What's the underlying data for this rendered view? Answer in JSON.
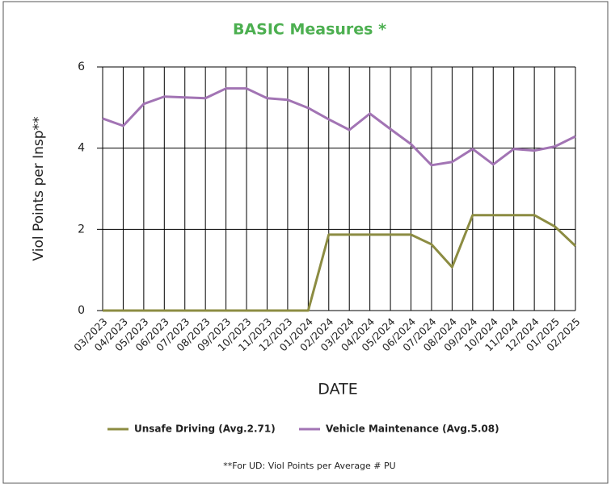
{
  "chart_data": {
    "type": "line",
    "title": "BASIC Measures *",
    "x_label": "DATE",
    "y_label": "Viol Points per Insp**",
    "categories": [
      "03/2023",
      "04/2023",
      "05/2023",
      "06/2023",
      "07/2023",
      "08/2023",
      "09/2023",
      "10/2023",
      "11/2023",
      "12/2023",
      "01/2024",
      "02/2024",
      "03/2024",
      "04/2024",
      "05/2024",
      "06/2024",
      "07/2024",
      "08/2024",
      "09/2024",
      "10/2024",
      "11/2024",
      "12/2024",
      "01/2025",
      "02/2025"
    ],
    "series": [
      {
        "name": "Unsafe Driving (Avg.2.71)",
        "color": "#8c8c42",
        "values": [
          0,
          0,
          0,
          0,
          0,
          0,
          0,
          0,
          0,
          0,
          0,
          1.87,
          1.87,
          1.87,
          1.87,
          1.87,
          1.63,
          1.07,
          2.35,
          2.35,
          2.35,
          2.35,
          2.07,
          1.59
        ]
      },
      {
        "name": "Vehicle Maintenance (Avg.5.08)",
        "color": "#a274b4",
        "values": [
          4.73,
          4.55,
          5.09,
          5.27,
          5.25,
          5.23,
          5.47,
          5.47,
          5.23,
          5.19,
          4.99,
          4.71,
          4.45,
          4.85,
          4.47,
          4.1,
          3.58,
          3.66,
          3.98,
          3.6,
          3.98,
          3.94,
          4.04,
          4.29
        ]
      }
    ],
    "ylim": [
      0,
      6
    ],
    "yticks": [
      0,
      2,
      4,
      6
    ],
    "grid": true,
    "footnote": "**For UD: Viol Points per Average # PU"
  }
}
